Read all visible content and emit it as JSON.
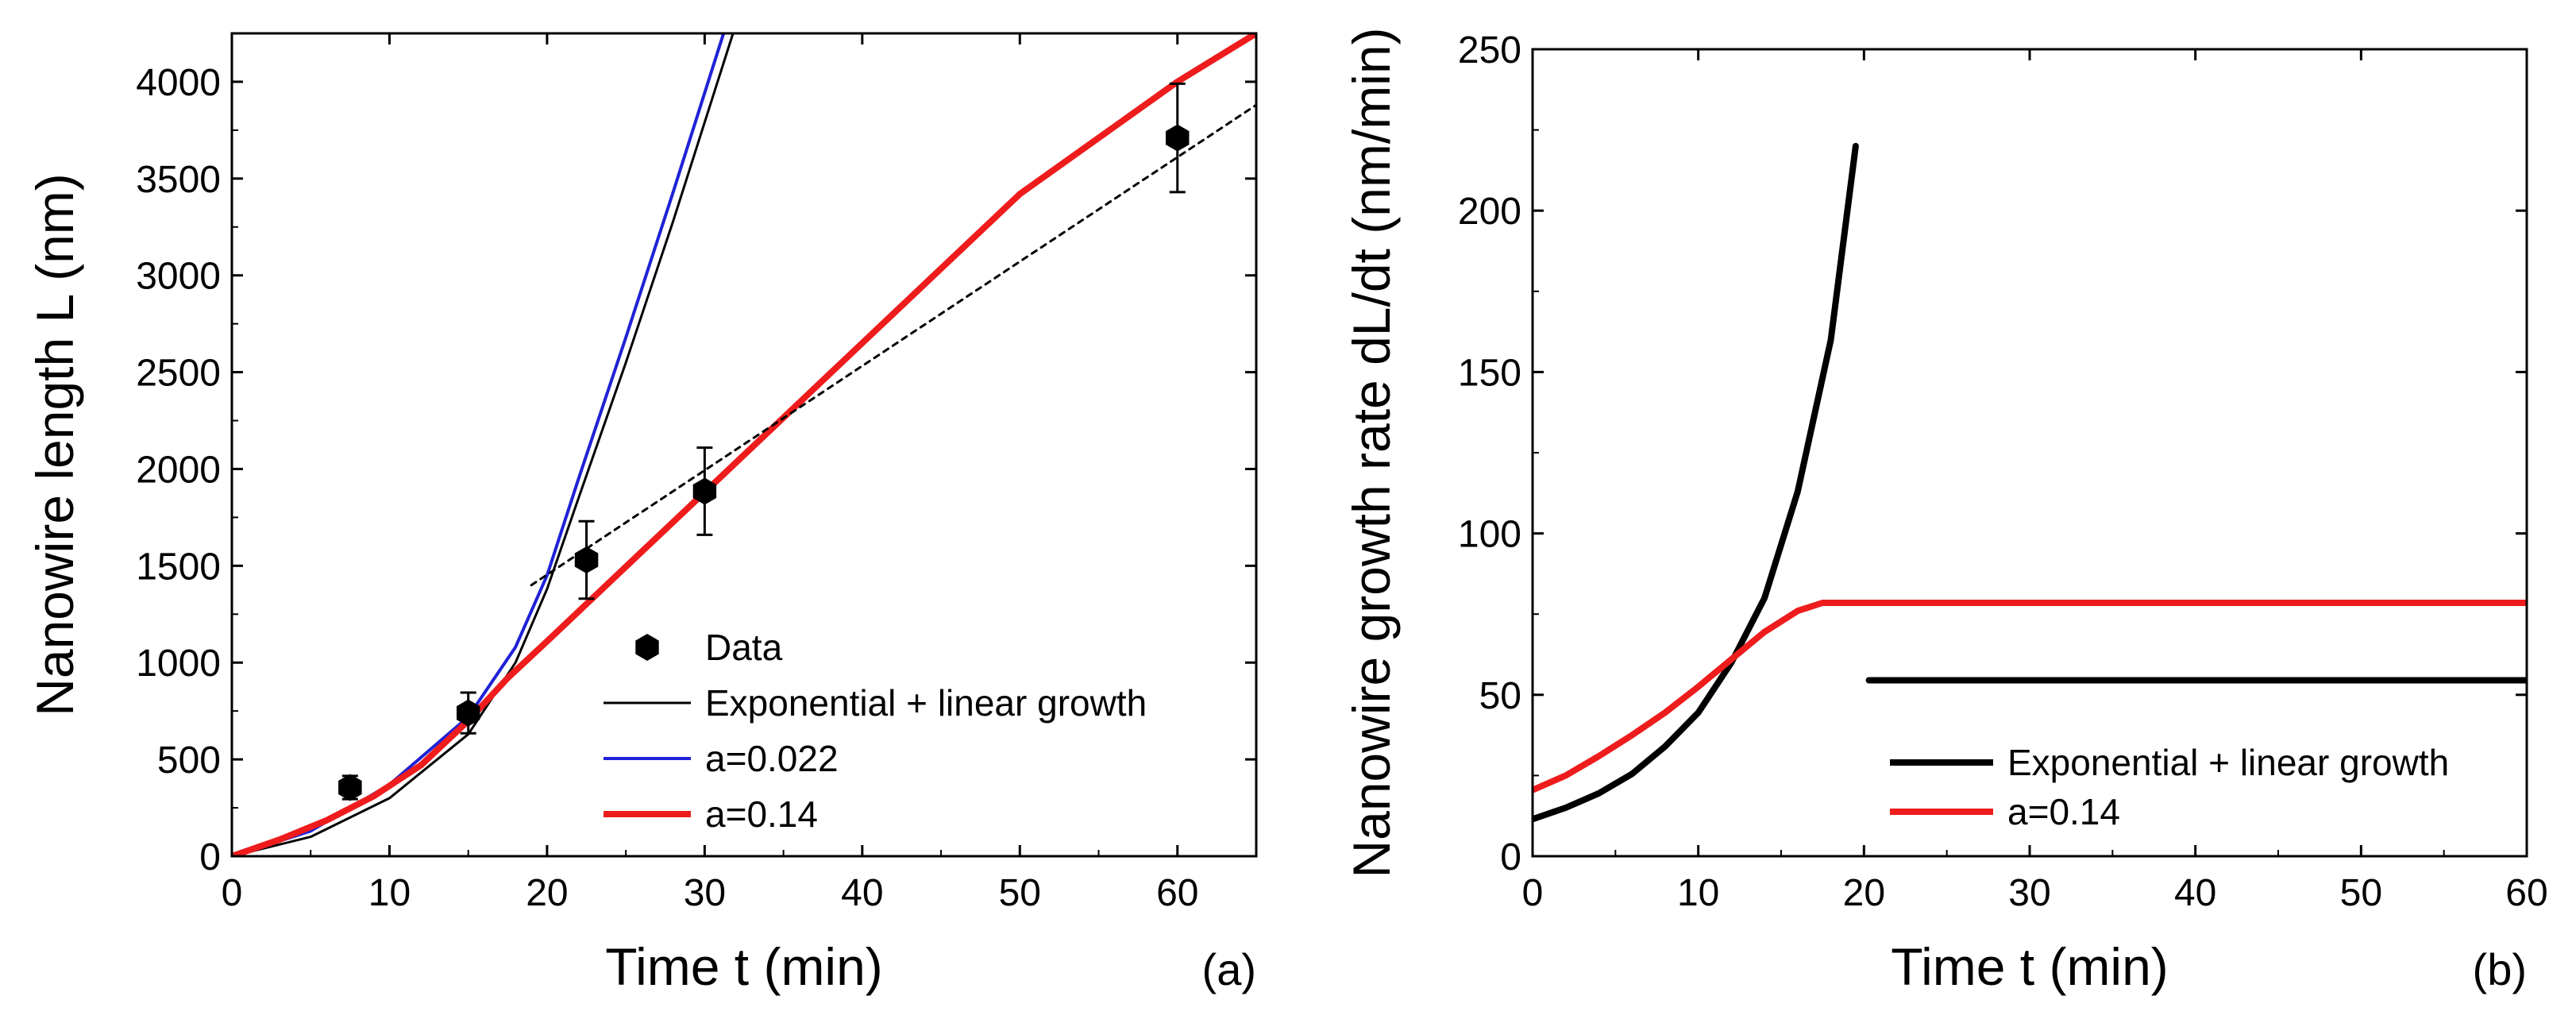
{
  "chart_data": [
    {
      "panel": "a",
      "type": "line",
      "panel_label": "(a)",
      "xlabel": "Time t (min)",
      "ylabel": "Nanowire length L (nm)",
      "xlim": [
        0,
        65
      ],
      "ylim": [
        0,
        4250
      ],
      "xticks": [
        0,
        10,
        20,
        30,
        40,
        50,
        60
      ],
      "yticks": [
        0,
        500,
        1000,
        1500,
        2000,
        2500,
        3000,
        3500,
        4000
      ],
      "legend_position": "bottom-right",
      "colors": {
        "data": "#000000",
        "exp_linear": "#000000",
        "a022": "#1f22d6",
        "a014": "#ee1c1c"
      },
      "series": [
        {
          "name": "Data",
          "kind": "points",
          "x": [
            7.5,
            15,
            22.5,
            30,
            60
          ],
          "y": [
            355,
            740,
            1530,
            1885,
            3710
          ],
          "err": [
            60,
            105,
            200,
            225,
            280
          ]
        },
        {
          "name": "Exponential + linear growth",
          "kind": "line",
          "x": [
            0,
            5,
            10,
            15,
            18,
            20,
            22,
            25,
            28,
            31.8
          ],
          "y": [
            0,
            100,
            300,
            630,
            1000,
            1380,
            1850,
            2550,
            3280,
            4250
          ]
        },
        {
          "name": "a=0.022",
          "kind": "line",
          "x": [
            0,
            5,
            10,
            15,
            18,
            20,
            22,
            25,
            28,
            31.2
          ],
          "y": [
            0,
            130,
            370,
            720,
            1080,
            1450,
            1950,
            2680,
            3430,
            4250
          ]
        },
        {
          "name": "a=0.14",
          "kind": "line",
          "x": [
            0,
            3,
            6,
            9,
            12,
            15,
            17.5,
            20,
            30,
            40,
            50,
            60,
            65
          ],
          "y": [
            0,
            85,
            185,
            310,
            470,
            700,
            920,
            1110,
            1880,
            2650,
            3420,
            4000,
            4250
          ]
        },
        {
          "name": "linear fit (dotted)",
          "kind": "dotted-line",
          "x": [
            19,
            65
          ],
          "y": [
            1400,
            3880
          ]
        }
      ],
      "legend": [
        {
          "label": "Data",
          "symbol": "hexagon",
          "color": "#000000"
        },
        {
          "label": "Exponential + linear growth",
          "symbol": "line",
          "color": "#000000"
        },
        {
          "label": "a=0.022",
          "symbol": "line",
          "color": "#1f22d6"
        },
        {
          "label": "a=0.14",
          "symbol": "line",
          "color": "#ee1c1c"
        }
      ]
    },
    {
      "panel": "b",
      "type": "line",
      "panel_label": "(b)",
      "xlabel": "Time t (min)",
      "ylabel": "Nanowire growth rate dL/dt (nm/min)",
      "xlim": [
        0,
        60
      ],
      "ylim": [
        0,
        250
      ],
      "xticks": [
        0,
        10,
        20,
        30,
        40,
        50,
        60
      ],
      "yticks": [
        0,
        50,
        100,
        150,
        200,
        250
      ],
      "legend_position": "bottom-right",
      "colors": {
        "exp_linear": "#000000",
        "a014": "#ee1c1c"
      },
      "series": [
        {
          "name": "Exponential + linear growth (exponential part)",
          "kind": "line",
          "x": [
            0,
            2,
            4,
            6,
            8,
            10,
            12,
            14,
            16,
            18,
            19.5
          ],
          "y": [
            11.5,
            15,
            19.5,
            25.5,
            34,
            44.5,
            60,
            80,
            113,
            160,
            220
          ]
        },
        {
          "name": "Exponential + linear growth (linear part)",
          "kind": "line",
          "x": [
            20.3,
            60
          ],
          "y": [
            54.5,
            54.5
          ]
        },
        {
          "name": "a=0.14",
          "kind": "line",
          "x": [
            0,
            2,
            4,
            6,
            8,
            10,
            12,
            14,
            16,
            17.5,
            18,
            60
          ],
          "y": [
            20.5,
            25,
            31,
            37.5,
            44.5,
            52.5,
            61,
            69.5,
            76,
            78.5,
            78.5,
            78.5
          ]
        }
      ],
      "legend": [
        {
          "label": "Exponential + linear growth",
          "symbol": "line",
          "color": "#000000"
        },
        {
          "label": "a=0.14",
          "symbol": "line",
          "color": "#ee1c1c"
        }
      ]
    }
  ]
}
